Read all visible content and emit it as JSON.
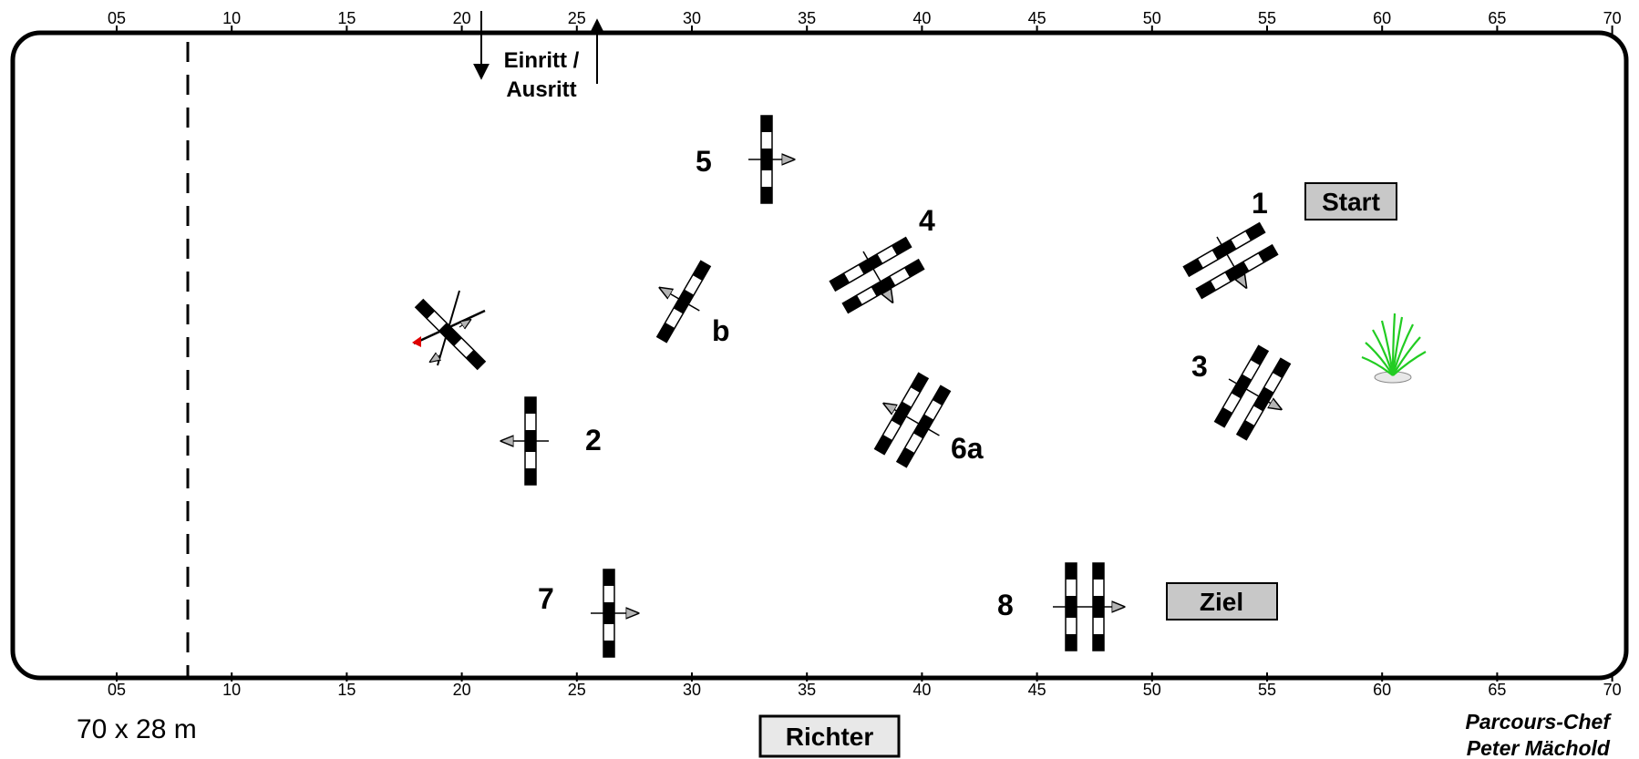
{
  "arena": {
    "size_label": "70 x 28 m",
    "tick_labels": [
      "05",
      "10",
      "15",
      "20",
      "25",
      "30",
      "35",
      "40",
      "45",
      "50",
      "55",
      "60",
      "65",
      "70"
    ]
  },
  "labels": {
    "entry_line1": "Einritt /",
    "entry_line2": "Ausritt",
    "start": "Start",
    "finish": "Ziel",
    "judge": "Richter",
    "designer_line1": "Parcours-Chef",
    "designer_line2": "Peter Mächold"
  },
  "obstacles": {
    "n1": "1",
    "n2": "2",
    "n3": "3",
    "n4": "4",
    "n5": "5",
    "n6a": "6a",
    "nb": "b",
    "n7": "7",
    "n8": "8"
  },
  "colors": {
    "pole_dark": "#000000",
    "pole_light": "#ffffff",
    "box_fill": "#c8c8c8",
    "arrow_fill": "#b4b4b4",
    "flag": "#e00000",
    "plant": "#22cc22"
  }
}
